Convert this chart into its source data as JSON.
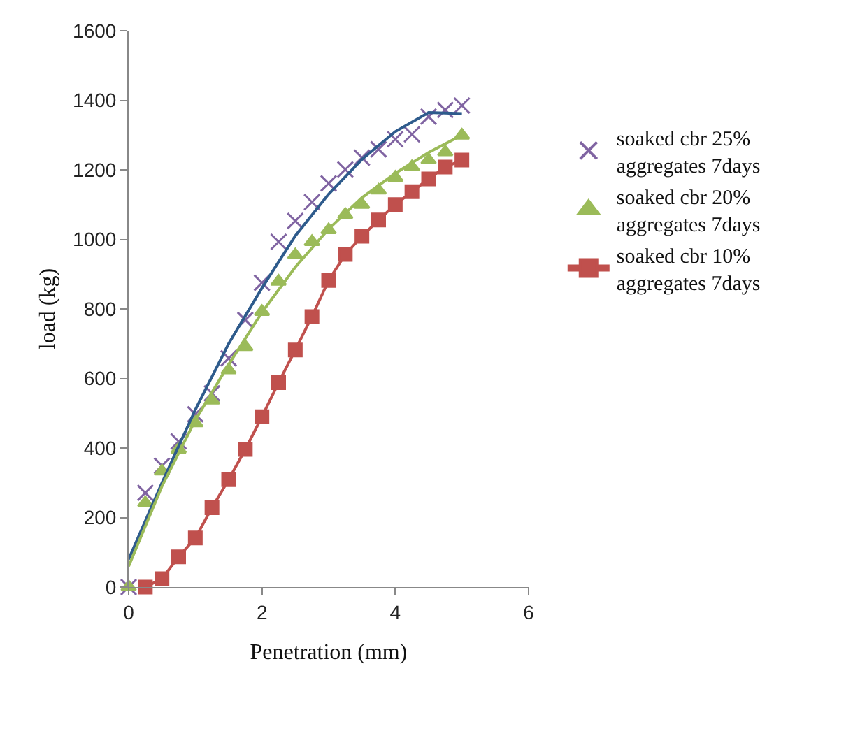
{
  "chart_data": {
    "type": "scatter",
    "xlabel": "Penetration (mm)",
    "ylabel": "load (kg)",
    "xlim": [
      0,
      6
    ],
    "xticks": [
      0,
      2,
      4,
      6
    ],
    "ylim": [
      0,
      1600
    ],
    "yticks": [
      0,
      200,
      400,
      600,
      800,
      1000,
      1200,
      1400,
      1600
    ],
    "legend": "right",
    "series": [
      {
        "name": "soaked cbr 25%\naggregates 7days",
        "color": "#8064a2",
        "marker": "cross",
        "x": [
          0,
          0.25,
          0.5,
          0.75,
          1,
          1.25,
          1.5,
          1.75,
          2,
          2.25,
          2.5,
          2.75,
          3,
          3.25,
          3.5,
          3.75,
          4,
          4.25,
          4.5,
          4.75,
          5
        ],
        "values": [
          0,
          271,
          349,
          419,
          497,
          557,
          658,
          768,
          875,
          993,
          1053,
          1107,
          1161,
          1201,
          1235,
          1259,
          1288,
          1302,
          1353,
          1372,
          1385
        ]
      },
      {
        "name": "soaked cbr 20%\naggregates 7days",
        "color": "#9bbb59",
        "marker": "triangle",
        "x": [
          0,
          0.25,
          0.5,
          0.75,
          1,
          1.25,
          1.5,
          1.75,
          2,
          2.25,
          2.5,
          2.75,
          3,
          3.25,
          3.5,
          3.75,
          4,
          4.25,
          4.5,
          4.75,
          5
        ],
        "values": [
          0,
          242,
          333,
          396,
          472,
          537,
          624,
          691,
          792,
          879,
          955,
          993,
          1027,
          1071,
          1100,
          1141,
          1178,
          1208,
          1228,
          1251,
          1299
        ]
      },
      {
        "name": "soaked cbr 10%\naggregates 7days",
        "color": "#c0504d",
        "marker": "square",
        "type": "line",
        "x": [
          0.25,
          0.5,
          0.75,
          1,
          1.25,
          1.5,
          1.75,
          2,
          2.25,
          2.5,
          2.75,
          3,
          3.25,
          3.5,
          3.75,
          4,
          4.25,
          4.5,
          4.75,
          5
        ],
        "values": [
          0,
          24,
          87,
          141,
          228,
          309,
          396,
          490,
          588,
          682,
          778,
          882,
          957,
          1009,
          1056,
          1100,
          1137,
          1174,
          1208,
          1228
        ]
      },
      {
        "type": "line",
        "color": "#2e5b8c",
        "marker": "none",
        "x": [
          0,
          0.5,
          1,
          1.5,
          2,
          2.5,
          3,
          3.5,
          4,
          4.5,
          5
        ],
        "values": [
          80,
          300,
          510,
          700,
          860,
          1010,
          1130,
          1230,
          1310,
          1365,
          1362
        ]
      },
      {
        "type": "line",
        "color": "#9bbb59",
        "marker": "none",
        "x": [
          0,
          0.5,
          1,
          1.5,
          2,
          2.5,
          3,
          3.5,
          4,
          4.5,
          5
        ],
        "values": [
          60,
          290,
          480,
          640,
          790,
          920,
          1030,
          1120,
          1190,
          1250,
          1300
        ]
      }
    ]
  }
}
